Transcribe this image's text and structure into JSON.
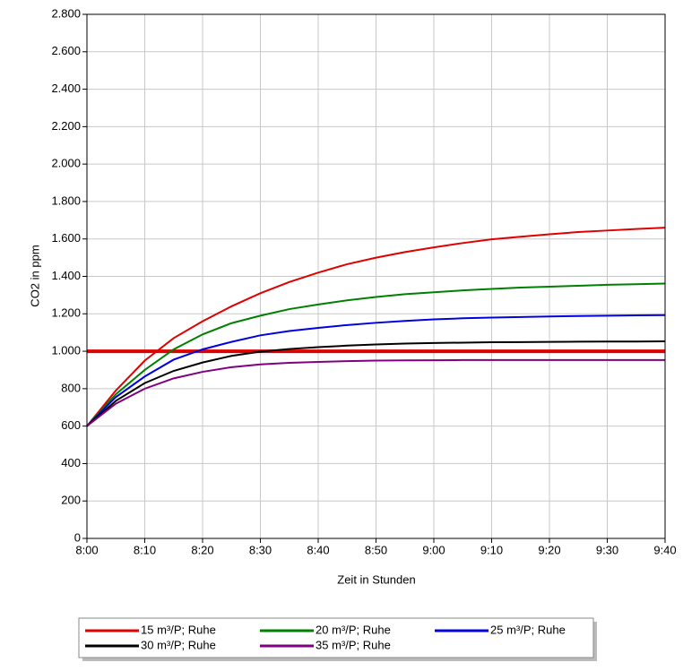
{
  "chart_data": {
    "type": "line",
    "xlabel": "Zeit in Stunden",
    "ylabel": "CO2 in ppm",
    "categories": [
      "8:00",
      null,
      "8:10",
      null,
      "8:20",
      null,
      "8:30",
      null,
      "8:40",
      null,
      "8:50",
      null,
      "9:00",
      null,
      "9:10",
      null,
      "9:20",
      null,
      "9:30",
      null,
      "9:40"
    ],
    "series": [
      {
        "name": "15 m³/P; Ruhe",
        "color": "#e00000",
        "values": [
          600,
          790,
          950,
          1070,
          1160,
          1240,
          1310,
          1370,
          1420,
          1465,
          1500,
          1530,
          1555,
          1578,
          1598,
          1612,
          1625,
          1637,
          1645,
          1653,
          1660
        ]
      },
      {
        "name": "20 m³/P; Ruhe",
        "color": "#008000",
        "values": [
          600,
          770,
          900,
          1010,
          1090,
          1150,
          1190,
          1225,
          1250,
          1272,
          1290,
          1305,
          1315,
          1325,
          1333,
          1340,
          1345,
          1350,
          1355,
          1358,
          1362
        ]
      },
      {
        "name": "25 m³/P; Ruhe",
        "color": "#0000e0",
        "values": [
          600,
          755,
          865,
          955,
          1010,
          1050,
          1085,
          1108,
          1125,
          1140,
          1152,
          1162,
          1170,
          1176,
          1180,
          1183,
          1186,
          1188,
          1190,
          1192,
          1193
        ]
      },
      {
        "name": "30 m³/P; Ruhe",
        "color": "#000000",
        "values": [
          600,
          735,
          830,
          895,
          940,
          975,
          998,
          1012,
          1022,
          1030,
          1036,
          1041,
          1044,
          1046,
          1048,
          1049,
          1050,
          1051,
          1052,
          1052,
          1053
        ]
      },
      {
        "name": "35 m³/P; Ruhe",
        "color": "#800080",
        "values": [
          600,
          720,
          800,
          855,
          890,
          915,
          930,
          938,
          943,
          947,
          950,
          951,
          952,
          953,
          953,
          953,
          953,
          953,
          953,
          953,
          953
        ]
      }
    ],
    "reference_line": {
      "value": 1000,
      "color": "#e00000"
    },
    "ylim": [
      0,
      2800
    ],
    "yticks": [
      0,
      200,
      400,
      600,
      800,
      {
        "value": 1000,
        "label": "1.000"
      },
      {
        "value": 1200,
        "label": "1.200"
      },
      {
        "value": 1400,
        "label": "1.400"
      },
      {
        "value": 1600,
        "label": "1.600"
      },
      {
        "value": 1800,
        "label": "1.800"
      },
      {
        "value": 2000,
        "label": "2.000"
      },
      {
        "value": 2200,
        "label": "2.200"
      },
      {
        "value": 2400,
        "label": "2.400"
      },
      {
        "value": 2600,
        "label": "2.600"
      },
      {
        "value": 2800,
        "label": "2.800"
      }
    ],
    "grid": true
  }
}
